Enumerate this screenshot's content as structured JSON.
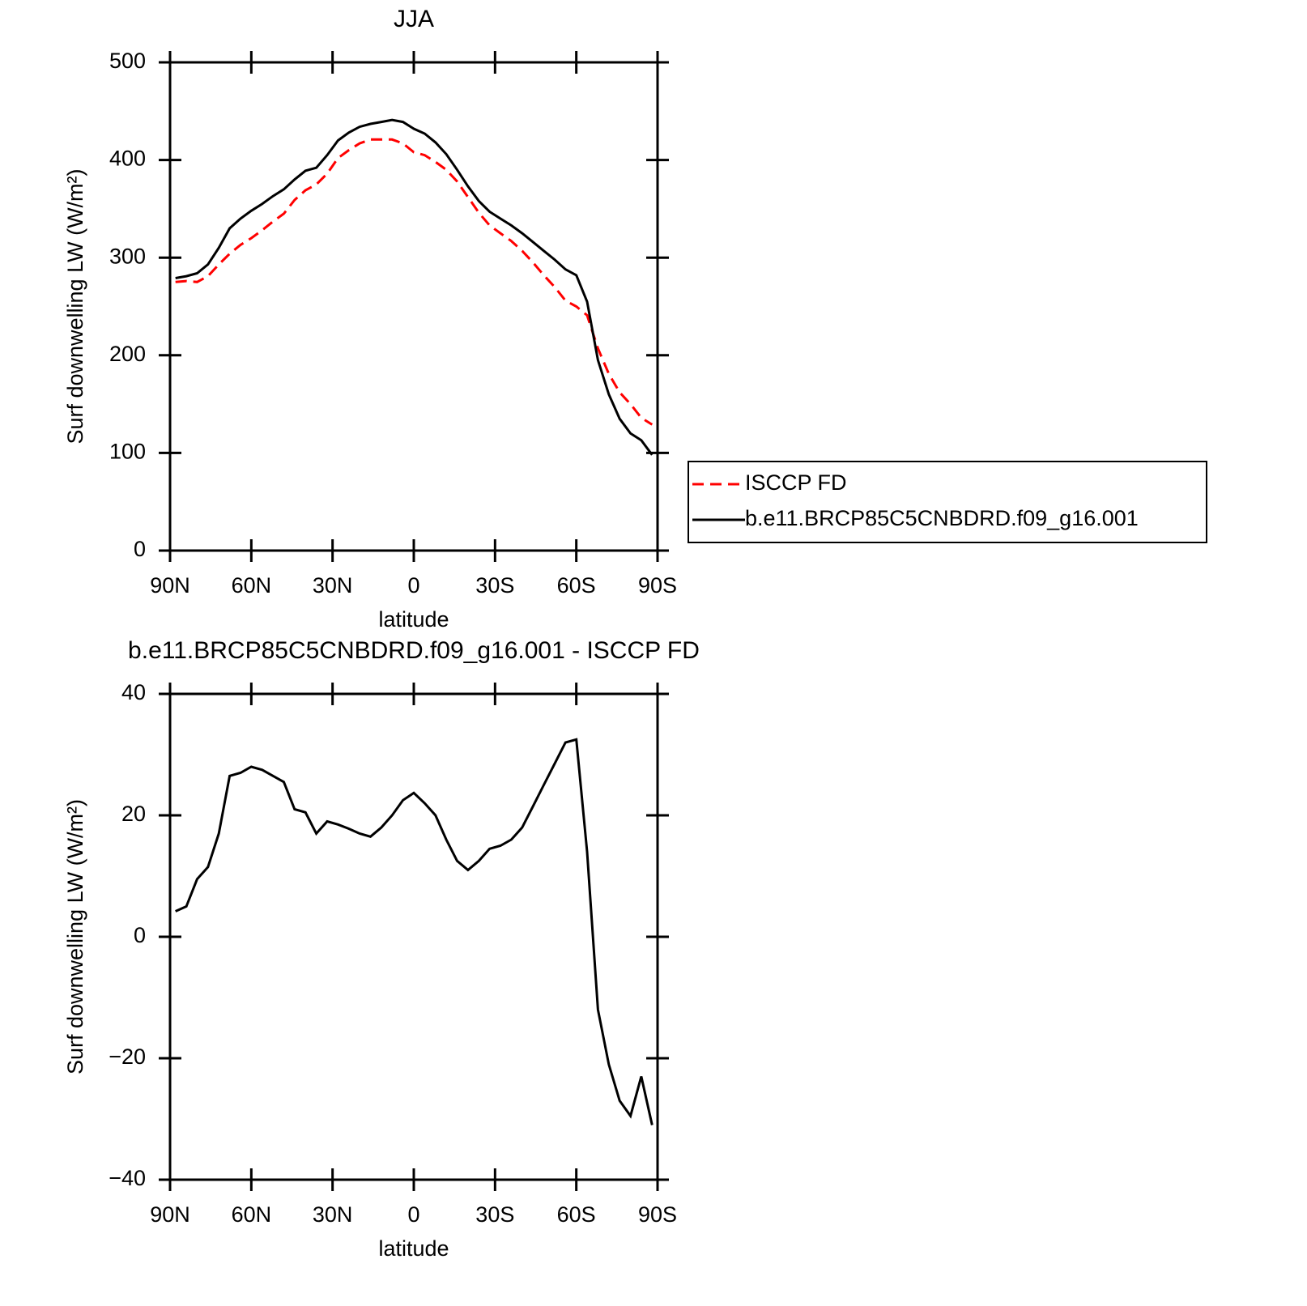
{
  "chart_data": [
    {
      "type": "line",
      "title": "JJA",
      "xlabel": "latitude",
      "ylabel": "Surf downwelling LW (W/m²)",
      "x": [
        88,
        84,
        80,
        76,
        72,
        68,
        64,
        60,
        56,
        52,
        48,
        44,
        40,
        36,
        32,
        28,
        24,
        20,
        16,
        12,
        8,
        4,
        0,
        -4,
        -8,
        -12,
        -16,
        -20,
        -24,
        -28,
        -32,
        -36,
        -40,
        -44,
        -48,
        -52,
        -56,
        -60,
        -64,
        -68,
        -72,
        -76,
        -80,
        -84,
        -88
      ],
      "series": [
        {
          "name": "ISCCP FD",
          "color": "#ff0000",
          "dashed": true,
          "values": [
            275,
            276,
            275,
            281,
            293,
            304,
            313,
            320,
            328,
            337,
            345,
            359,
            369,
            375,
            386,
            402,
            410,
            417,
            421,
            421,
            421,
            417,
            408,
            405,
            398,
            390,
            378,
            362,
            346,
            333,
            325,
            317,
            307,
            295,
            282,
            270,
            256,
            250,
            241,
            207,
            181,
            162,
            150,
            136,
            129
          ]
        },
        {
          "name": "b.e11.BRCP85C5CNBDRD.f09_g16.001",
          "color": "#000000",
          "dashed": false,
          "values": [
            279,
            281,
            284,
            293,
            310,
            330,
            340,
            348,
            355,
            363,
            370,
            380,
            389,
            392,
            405,
            420,
            428,
            434,
            437,
            439,
            441,
            439,
            432,
            427,
            418,
            406,
            390,
            373,
            358,
            347,
            340,
            333,
            325,
            316,
            307,
            298,
            288,
            282,
            255,
            195,
            160,
            135,
            120,
            113,
            98
          ]
        }
      ],
      "xlim": [
        90,
        -90
      ],
      "xticks": [
        {
          "value": 90,
          "label": "90N"
        },
        {
          "value": 60,
          "label": "60N"
        },
        {
          "value": 30,
          "label": "30N"
        },
        0,
        {
          "value": -30,
          "label": "30S"
        },
        {
          "value": -60,
          "label": "60S"
        },
        {
          "value": -90,
          "label": "90S"
        }
      ],
      "ylim": [
        0,
        500
      ],
      "yticks": [
        0,
        100,
        200,
        300,
        400,
        500
      ],
      "legend": "right"
    },
    {
      "type": "line",
      "title": "b.e11.BRCP85C5CNBDRD.f09_g16.001 - ISCCP FD",
      "xlabel": "latitude",
      "ylabel": "Surf downwelling LW (W/m²)",
      "x": [
        88,
        84,
        80,
        76,
        72,
        68,
        64,
        60,
        56,
        52,
        48,
        44,
        40,
        36,
        32,
        28,
        24,
        20,
        16,
        12,
        8,
        4,
        0,
        -4,
        -8,
        -12,
        -16,
        -20,
        -24,
        -28,
        -32,
        -36,
        -40,
        -44,
        -48,
        -52,
        -56,
        -60,
        -64,
        -68,
        -72,
        -76,
        -80,
        -84,
        -88
      ],
      "color": "#000000",
      "values": [
        4.2,
        5,
        9.5,
        11.5,
        17,
        26.5,
        27,
        28,
        27.5,
        26.5,
        25.5,
        21,
        20.5,
        17,
        19,
        18.5,
        17.8,
        17,
        16.5,
        18,
        20,
        22.5,
        23.7,
        22,
        20,
        16,
        12.5,
        11,
        12.5,
        14.5,
        15,
        16,
        18,
        21.5,
        25,
        28.5,
        32,
        32.5,
        14,
        -12,
        -21,
        -27,
        -29.5,
        -23,
        -31
      ],
      "xlim": [
        90,
        -90
      ],
      "xticks": [
        {
          "value": 90,
          "label": "90N"
        },
        {
          "value": 60,
          "label": "60N"
        },
        {
          "value": 30,
          "label": "30N"
        },
        0,
        {
          "value": -30,
          "label": "30S"
        },
        {
          "value": -60,
          "label": "60S"
        },
        {
          "value": -90,
          "label": "90S"
        }
      ],
      "ylim": [
        -40,
        40
      ],
      "yticks": [
        {
          "value": -40,
          "label": "−40"
        },
        {
          "value": -20,
          "label": "−20"
        },
        0,
        20,
        40
      ]
    }
  ]
}
